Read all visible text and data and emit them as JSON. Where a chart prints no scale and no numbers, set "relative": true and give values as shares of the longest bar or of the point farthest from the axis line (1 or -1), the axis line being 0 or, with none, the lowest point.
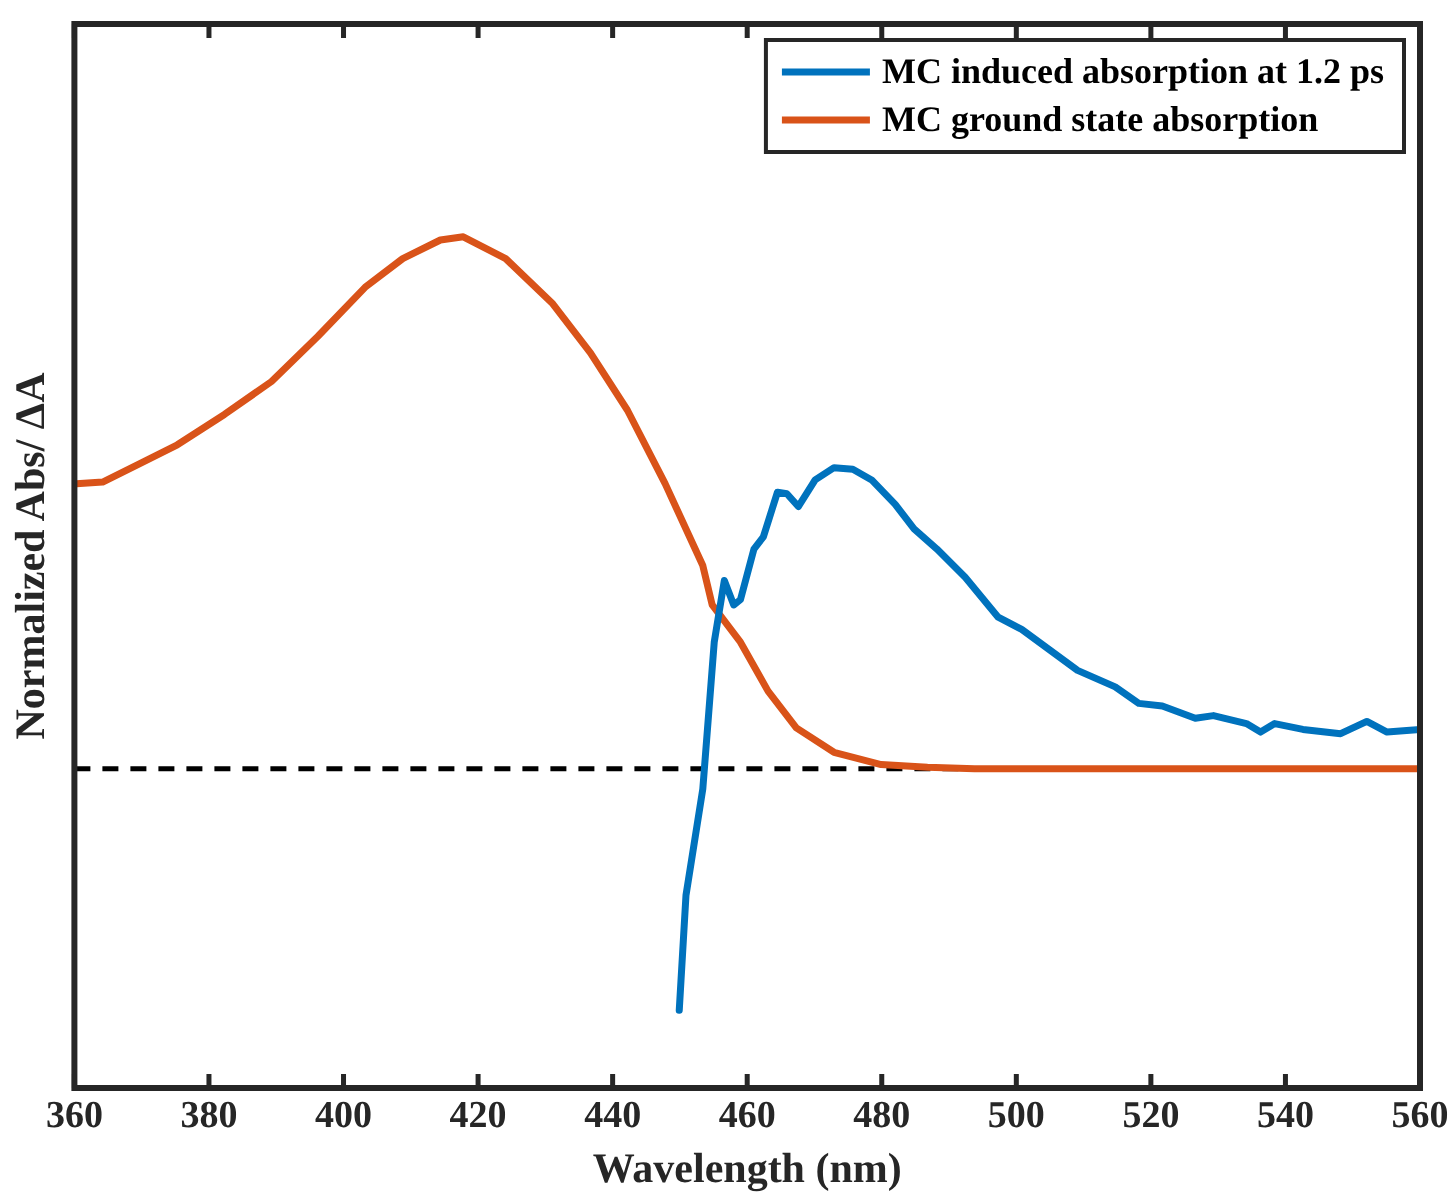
{
  "chart_data": {
    "type": "line",
    "xlabel": "Wavelength (nm)",
    "ylabel": "Normalized Abs/ ΔA",
    "relative": true,
    "xlim": [
      360,
      560
    ],
    "xticks": [
      360,
      380,
      400,
      420,
      440,
      460,
      480,
      500,
      520,
      540,
      560
    ],
    "legend": "top right",
    "grid": false,
    "marker": "none",
    "line_style": "solid",
    "ref_lines": [
      {
        "axis": "y",
        "value": 0,
        "color": "#000000",
        "line_style": "dashed"
      }
    ],
    "series": [
      {
        "name": "MC induced absorption at 1.2 ps",
        "color": "#0072bd",
        "x": [
          449.9,
          450.9,
          453.4,
          455.1,
          456.6,
          458,
          459,
          461,
          462.4,
          464.5,
          465.9,
          467.6,
          470.1,
          472.9,
          475.7,
          478.5,
          482,
          484.8,
          488.2,
          492.4,
          497.3,
          500.8,
          505,
          509.1,
          514.7,
          518.2,
          521.7,
          526.6,
          529.3,
          534.2,
          536.3,
          538.4,
          542.6,
          548.2,
          552.1,
          555.1,
          560
        ],
        "values": [
          -0.454,
          -0.238,
          -0.038,
          0.238,
          0.354,
          0.308,
          0.318,
          0.413,
          0.436,
          0.52,
          0.517,
          0.493,
          0.543,
          0.566,
          0.563,
          0.543,
          0.497,
          0.451,
          0.413,
          0.36,
          0.285,
          0.262,
          0.223,
          0.185,
          0.154,
          0.123,
          0.118,
          0.095,
          0.1,
          0.085,
          0.069,
          0.085,
          0.074,
          0.066,
          0.089,
          0.069,
          0.074
        ]
      },
      {
        "name": "MC ground state absorption",
        "color": "#d95319",
        "x": [
          360.3,
          364.2,
          369.8,
          375.3,
          382.3,
          389.3,
          396.2,
          403.2,
          408.8,
          414.4,
          417.8,
          424.1,
          431.1,
          436.7,
          442.2,
          447.8,
          453.4,
          454.8,
          459,
          463.1,
          467.3,
          472.9,
          479.9,
          486.8,
          493.8,
          560
        ],
        "values": [
          0.536,
          0.539,
          0.574,
          0.609,
          0.666,
          0.728,
          0.813,
          0.905,
          0.959,
          0.994,
          1,
          0.959,
          0.874,
          0.782,
          0.674,
          0.536,
          0.382,
          0.308,
          0.238,
          0.146,
          0.077,
          0.031,
          0.008,
          0.003,
          0,
          0
        ]
      }
    ]
  }
}
